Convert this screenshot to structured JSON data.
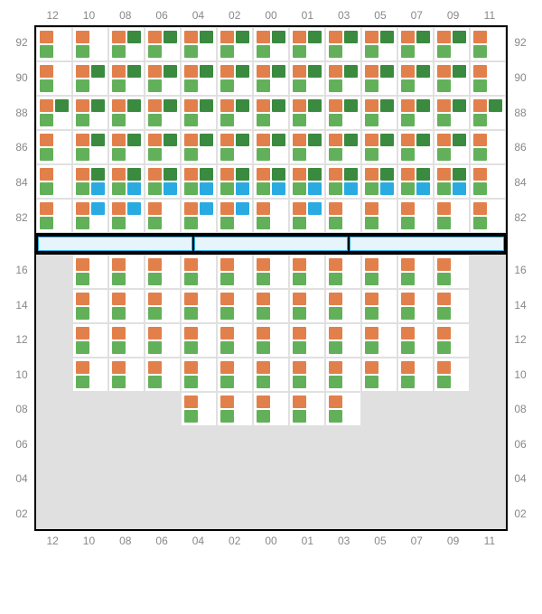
{
  "colors": {
    "orange": "#e2804b",
    "green": "#63b05a",
    "darkgreen": "#3a8a3f",
    "blue": "#29abe2",
    "cellBg": "#ffffff",
    "emptyBg": "#e0e0e0",
    "border": "#000000",
    "sepFill": "#e6f4fb"
  },
  "columns": [
    "12",
    "10",
    "08",
    "06",
    "04",
    "02",
    "00",
    "01",
    "03",
    "05",
    "07",
    "09",
    "11"
  ],
  "topRows": [
    "92",
    "90",
    "88",
    "86",
    "84",
    "82"
  ],
  "bottomRows": [
    "16",
    "14",
    "12",
    "10",
    "08",
    "06",
    "04",
    "02"
  ],
  "separatorSegments": 3,
  "topGrid": [
    [
      [
        "o",
        "",
        "g",
        ""
      ],
      [
        "o",
        "",
        "g",
        ""
      ],
      [
        "o",
        "dg",
        "g",
        ""
      ],
      [
        "o",
        "dg",
        "g",
        ""
      ],
      [
        "o",
        "dg",
        "g",
        ""
      ],
      [
        "o",
        "dg",
        "g",
        ""
      ],
      [
        "o",
        "dg",
        "g",
        ""
      ],
      [
        "o",
        "dg",
        "g",
        ""
      ],
      [
        "o",
        "dg",
        "g",
        ""
      ],
      [
        "o",
        "dg",
        "g",
        ""
      ],
      [
        "o",
        "dg",
        "g",
        ""
      ],
      [
        "o",
        "dg",
        "g",
        ""
      ],
      [
        "o",
        "",
        "g",
        ""
      ]
    ],
    [
      [
        "o",
        "",
        "g",
        ""
      ],
      [
        "o",
        "dg",
        "g",
        ""
      ],
      [
        "o",
        "dg",
        "g",
        ""
      ],
      [
        "o",
        "dg",
        "g",
        ""
      ],
      [
        "o",
        "dg",
        "g",
        ""
      ],
      [
        "o",
        "dg",
        "g",
        ""
      ],
      [
        "o",
        "dg",
        "g",
        ""
      ],
      [
        "o",
        "dg",
        "g",
        ""
      ],
      [
        "o",
        "dg",
        "g",
        ""
      ],
      [
        "o",
        "dg",
        "g",
        ""
      ],
      [
        "o",
        "dg",
        "g",
        ""
      ],
      [
        "o",
        "dg",
        "g",
        ""
      ],
      [
        "o",
        "",
        "g",
        ""
      ]
    ],
    [
      [
        "o",
        "dg",
        "g",
        ""
      ],
      [
        "o",
        "dg",
        "g",
        ""
      ],
      [
        "o",
        "dg",
        "g",
        ""
      ],
      [
        "o",
        "dg",
        "g",
        ""
      ],
      [
        "o",
        "dg",
        "g",
        ""
      ],
      [
        "o",
        "dg",
        "g",
        ""
      ],
      [
        "o",
        "dg",
        "g",
        ""
      ],
      [
        "o",
        "dg",
        "g",
        ""
      ],
      [
        "o",
        "dg",
        "g",
        ""
      ],
      [
        "o",
        "dg",
        "g",
        ""
      ],
      [
        "o",
        "dg",
        "g",
        ""
      ],
      [
        "o",
        "dg",
        "g",
        ""
      ],
      [
        "o",
        "dg",
        "g",
        ""
      ]
    ],
    [
      [
        "o",
        "",
        "g",
        ""
      ],
      [
        "o",
        "dg",
        "g",
        ""
      ],
      [
        "o",
        "dg",
        "g",
        ""
      ],
      [
        "o",
        "dg",
        "g",
        ""
      ],
      [
        "o",
        "dg",
        "g",
        ""
      ],
      [
        "o",
        "dg",
        "g",
        ""
      ],
      [
        "o",
        "dg",
        "g",
        ""
      ],
      [
        "o",
        "dg",
        "g",
        ""
      ],
      [
        "o",
        "dg",
        "g",
        ""
      ],
      [
        "o",
        "dg",
        "g",
        ""
      ],
      [
        "o",
        "dg",
        "g",
        ""
      ],
      [
        "o",
        "dg",
        "g",
        ""
      ],
      [
        "o",
        "",
        "g",
        ""
      ]
    ],
    [
      [
        "o",
        "",
        "g",
        ""
      ],
      [
        "o",
        "dg",
        "g",
        "b"
      ],
      [
        "o",
        "dg",
        "g",
        "b"
      ],
      [
        "o",
        "dg",
        "g",
        "b"
      ],
      [
        "o",
        "dg",
        "g",
        "b"
      ],
      [
        "o",
        "dg",
        "g",
        "b"
      ],
      [
        "o",
        "dg",
        "g",
        "b"
      ],
      [
        "o",
        "dg",
        "g",
        "b"
      ],
      [
        "o",
        "dg",
        "g",
        "b"
      ],
      [
        "o",
        "dg",
        "g",
        "b"
      ],
      [
        "o",
        "dg",
        "g",
        "b"
      ],
      [
        "o",
        "dg",
        "g",
        "b"
      ],
      [
        "o",
        "",
        "g",
        ""
      ]
    ],
    [
      [
        "o",
        "",
        "g",
        ""
      ],
      [
        "o",
        "b",
        "g",
        ""
      ],
      [
        "o",
        "b",
        "g",
        ""
      ],
      [
        "o",
        "",
        "g",
        ""
      ],
      [
        "o",
        "b",
        "g",
        ""
      ],
      [
        "o",
        "b",
        "g",
        ""
      ],
      [
        "o",
        "",
        "g",
        ""
      ],
      [
        "o",
        "b",
        "g",
        ""
      ],
      [
        "o",
        "",
        "g",
        ""
      ],
      [
        "o",
        "",
        "g",
        ""
      ],
      [
        "o",
        "",
        "g",
        ""
      ],
      [
        "o",
        "",
        "g",
        ""
      ],
      [
        "o",
        "",
        "g",
        ""
      ]
    ]
  ],
  "bottomGrid": [
    [
      null,
      [
        "o",
        "",
        "g",
        ""
      ],
      [
        "o",
        "",
        "g",
        ""
      ],
      [
        "o",
        "",
        "g",
        ""
      ],
      [
        "o",
        "",
        "g",
        ""
      ],
      [
        "o",
        "",
        "g",
        ""
      ],
      [
        "o",
        "",
        "g",
        ""
      ],
      [
        "o",
        "",
        "g",
        ""
      ],
      [
        "o",
        "",
        "g",
        ""
      ],
      [
        "o",
        "",
        "g",
        ""
      ],
      [
        "o",
        "",
        "g",
        ""
      ],
      [
        "o",
        "",
        "g",
        ""
      ],
      null
    ],
    [
      null,
      [
        "o",
        "",
        "g",
        ""
      ],
      [
        "o",
        "",
        "g",
        ""
      ],
      [
        "o",
        "",
        "g",
        ""
      ],
      [
        "o",
        "",
        "g",
        ""
      ],
      [
        "o",
        "",
        "g",
        ""
      ],
      [
        "o",
        "",
        "g",
        ""
      ],
      [
        "o",
        "",
        "g",
        ""
      ],
      [
        "o",
        "",
        "g",
        ""
      ],
      [
        "o",
        "",
        "g",
        ""
      ],
      [
        "o",
        "",
        "g",
        ""
      ],
      [
        "o",
        "",
        "g",
        ""
      ],
      null
    ],
    [
      null,
      [
        "o",
        "",
        "g",
        ""
      ],
      [
        "o",
        "",
        "g",
        ""
      ],
      [
        "o",
        "",
        "g",
        ""
      ],
      [
        "o",
        "",
        "g",
        ""
      ],
      [
        "o",
        "",
        "g",
        ""
      ],
      [
        "o",
        "",
        "g",
        ""
      ],
      [
        "o",
        "",
        "g",
        ""
      ],
      [
        "o",
        "",
        "g",
        ""
      ],
      [
        "o",
        "",
        "g",
        ""
      ],
      [
        "o",
        "",
        "g",
        ""
      ],
      [
        "o",
        "",
        "g",
        ""
      ],
      null
    ],
    [
      null,
      [
        "o",
        "",
        "g",
        ""
      ],
      [
        "o",
        "",
        "g",
        ""
      ],
      [
        "o",
        "",
        "g",
        ""
      ],
      [
        "o",
        "",
        "g",
        ""
      ],
      [
        "o",
        "",
        "g",
        ""
      ],
      [
        "o",
        "",
        "g",
        ""
      ],
      [
        "o",
        "",
        "g",
        ""
      ],
      [
        "o",
        "",
        "g",
        ""
      ],
      [
        "o",
        "",
        "g",
        ""
      ],
      [
        "o",
        "",
        "g",
        ""
      ],
      [
        "o",
        "",
        "g",
        ""
      ],
      null
    ],
    [
      null,
      null,
      null,
      null,
      [
        "o",
        "",
        "g",
        ""
      ],
      [
        "o",
        "",
        "g",
        ""
      ],
      [
        "o",
        "",
        "g",
        ""
      ],
      [
        "o",
        "",
        "g",
        ""
      ],
      [
        "o",
        "",
        "g",
        ""
      ],
      null,
      null,
      null,
      null
    ],
    [
      null,
      null,
      null,
      null,
      null,
      null,
      null,
      null,
      null,
      null,
      null,
      null,
      null
    ],
    [
      null,
      null,
      null,
      null,
      null,
      null,
      null,
      null,
      null,
      null,
      null,
      null,
      null
    ],
    [
      null,
      null,
      null,
      null,
      null,
      null,
      null,
      null,
      null,
      null,
      null,
      null,
      null
    ]
  ]
}
